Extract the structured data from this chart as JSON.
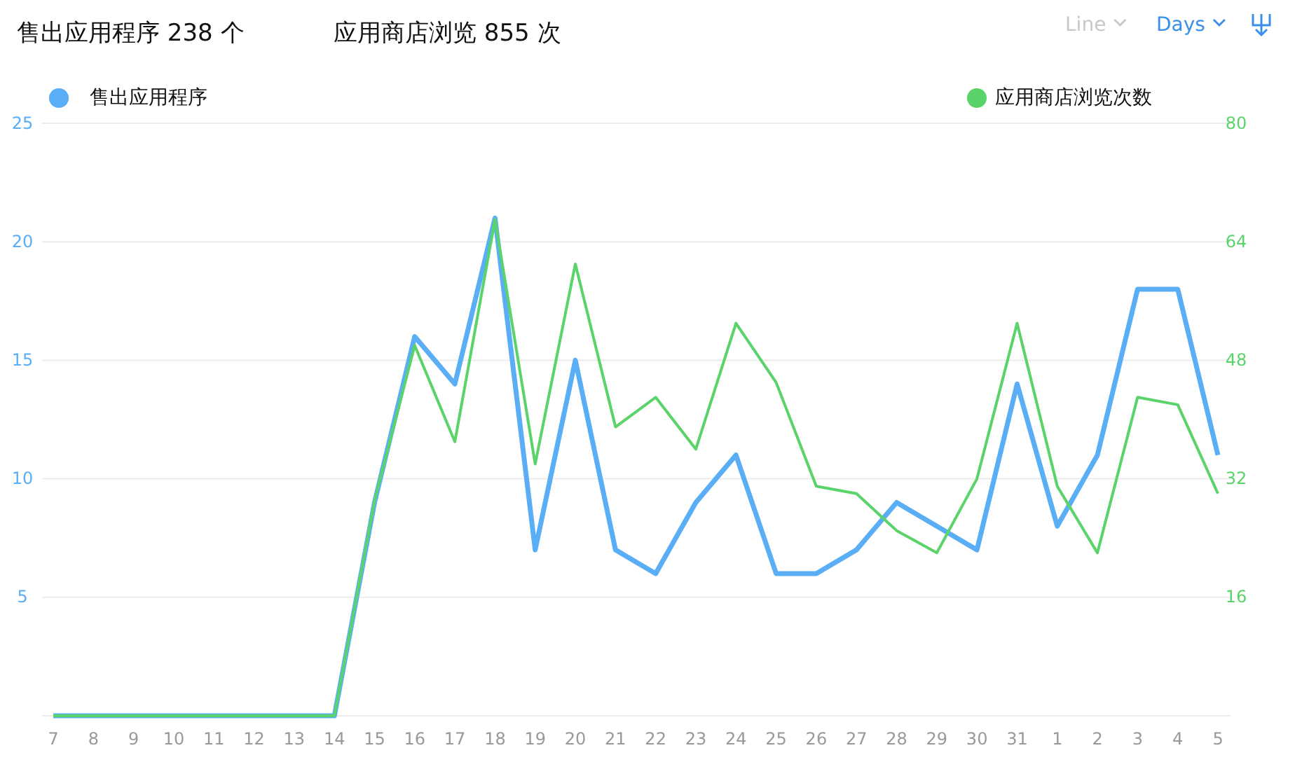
{
  "chart_data": {
    "type": "line",
    "title": "售出应用程序 238 个",
    "subtitle": "应用商店浏览 855 次",
    "annotations": [
      "Line",
      "Days"
    ],
    "categories": [
      "7",
      "8",
      "9",
      "10",
      "11",
      "12",
      "13",
      "14",
      "15",
      "16",
      "17",
      "18",
      "19",
      "20",
      "21",
      "22",
      "23",
      "24",
      "25",
      "26",
      "27",
      "28",
      "29",
      "30",
      "31",
      "1",
      "2",
      "3",
      "4",
      "5"
    ],
    "series": [
      {
        "name": "售出应用程序",
        "color": "#5aaef5",
        "values": [
          0,
          0,
          0,
          0,
          0,
          0,
          0,
          0,
          9,
          16,
          14,
          21,
          7,
          15,
          7,
          6,
          9,
          11,
          6,
          6,
          7,
          9,
          8,
          7,
          14,
          8,
          11,
          18,
          18,
          11
        ]
      },
      {
        "name": "应用商店浏览次数",
        "color": "#5ad46a",
        "axis": "y2",
        "values": [
          0,
          0,
          0,
          0,
          0,
          0,
          0,
          0,
          29,
          50,
          37,
          67,
          34,
          61,
          39,
          43,
          36,
          53,
          45,
          31,
          30,
          25,
          22,
          32,
          53,
          31,
          22,
          43,
          42,
          30
        ]
      }
    ],
    "ylim": [
      0,
      25
    ],
    "yticks": [
      5,
      10,
      15,
      20,
      25
    ],
    "y2lim": [
      0,
      80
    ],
    "y2ticks": [
      16,
      32,
      48,
      64,
      80
    ],
    "grid": "y",
    "legend": "top",
    "marker": "none",
    "line_style": "solid"
  }
}
